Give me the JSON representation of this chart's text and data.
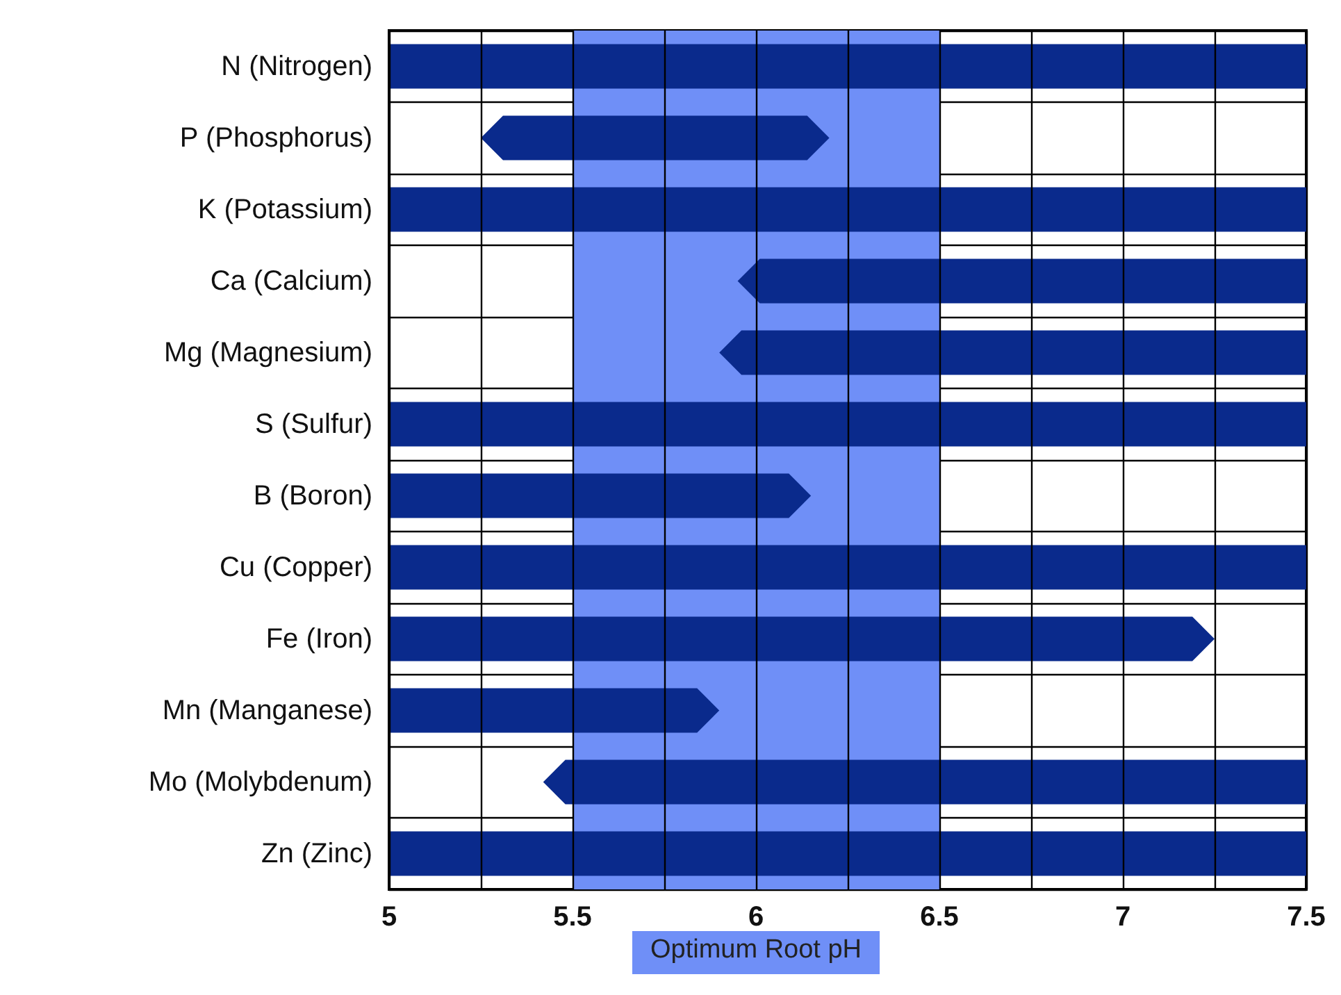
{
  "chart_data": {
    "type": "bar",
    "orientation": "horizontal",
    "categories": [
      "N (Nitrogen)",
      "P (Phosphorus)",
      "K (Potassium)",
      "Ca (Calcium)",
      "Mg (Magnesium)",
      "S (Sulfur)",
      "B (Boron)",
      "Cu (Copper)",
      "Fe (Iron)",
      "Mn (Manganese)",
      "Mo (Molybdenum)",
      "Zn (Zinc)"
    ],
    "base": [
      5,
      5.25,
      5,
      5.95,
      5.9,
      5,
      5,
      5,
      5,
      5,
      5.42,
      5
    ],
    "values": [
      2.5,
      0.95,
      2.5,
      1.55,
      1.6,
      2.5,
      1.15,
      2.5,
      2.25,
      0.9,
      2.08,
      2.5
    ],
    "color": "#0a2a8c",
    "xlim": [
      5,
      7.5
    ],
    "xticks": [
      5,
      {
        "value": 5.25,
        "label": null
      },
      5.5,
      {
        "value": 5.75,
        "label": null
      },
      6,
      {
        "value": 6.25,
        "label": null
      },
      6.5,
      {
        "value": 6.75,
        "label": null
      },
      7,
      {
        "value": 7.25,
        "label": null
      },
      7.5
    ],
    "bands": [
      {
        "axis": "x",
        "from": 5.5,
        "to": 6.5,
        "label": "Optimum Root pH",
        "color": "#6f8ff7"
      }
    ],
    "grid": true
  }
}
